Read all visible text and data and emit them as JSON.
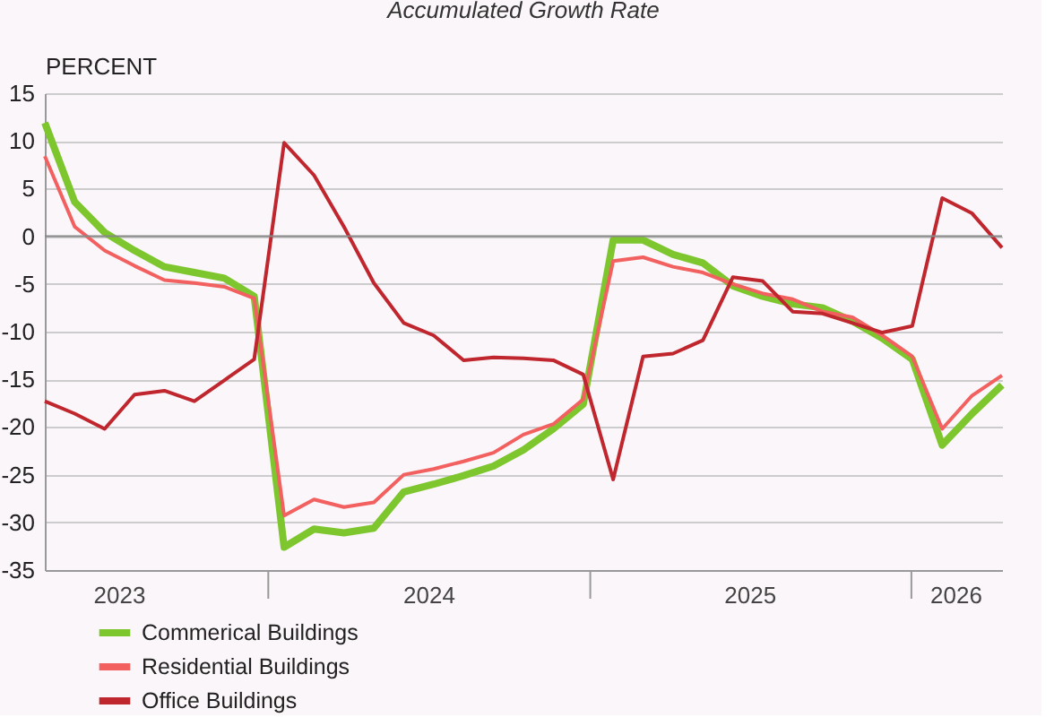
{
  "chart_data": {
    "type": "line",
    "title": "Accumulated Growth Rate",
    "ylabel": "PERCENT",
    "x": [
      "2023-04-22",
      "2023-05-26",
      "2023-06-29",
      "2023-08-02",
      "2023-09-05",
      "2023-10-09",
      "2023-11-12",
      "2023-12-16",
      "2024-01-19",
      "2024-02-22",
      "2024-03-27",
      "2024-04-30",
      "2024-06-03",
      "2024-07-07",
      "2024-08-10",
      "2024-09-13",
      "2024-10-17",
      "2024-11-20",
      "2024-12-24",
      "2025-01-27",
      "2025-03-02",
      "2025-04-05",
      "2025-05-09",
      "2025-06-12",
      "2025-07-16",
      "2025-08-19",
      "2025-09-22",
      "2025-10-26",
      "2025-11-29",
      "2026-01-02",
      "2026-02-05",
      "2026-03-11",
      "2026-04-14"
    ],
    "series": [
      {
        "name": "Commerical Buildings",
        "color": "#7dc62e",
        "values": [
          11.9,
          3.6,
          0.4,
          -1.5,
          -3.2,
          -3.8,
          -4.4,
          -6.3,
          -32.6,
          -30.7,
          -31.1,
          -30.6,
          -26.8,
          -26.0,
          -25.1,
          -24.1,
          -22.4,
          -20.2,
          -17.6,
          -0.4,
          -0.4,
          -1.9,
          -2.8,
          -5.2,
          -6.3,
          -7.1,
          -7.5,
          -8.9,
          -10.7,
          -12.9,
          -21.9,
          -18.6,
          -15.6
        ]
      },
      {
        "name": "Residential Buildings",
        "color": "#f26060",
        "values": [
          8.4,
          1.0,
          -1.5,
          -3.1,
          -4.6,
          -4.9,
          -5.3,
          -6.5,
          -29.3,
          -27.6,
          -28.4,
          -27.9,
          -25.0,
          -24.4,
          -23.6,
          -22.7,
          -20.8,
          -19.7,
          -17.1,
          -2.6,
          -2.2,
          -3.2,
          -3.8,
          -5.0,
          -6.0,
          -6.6,
          -7.9,
          -8.5,
          -10.4,
          -12.6,
          -20.2,
          -16.7,
          -14.6
        ]
      },
      {
        "name": "Office Buildings",
        "color": "#c0262d",
        "values": [
          -17.3,
          -18.6,
          -20.2,
          -16.6,
          -16.2,
          -17.3,
          -15.1,
          -12.9,
          9.8,
          6.4,
          1.0,
          -4.9,
          -9.1,
          -10.4,
          -13.0,
          -12.7,
          -12.8,
          -13.0,
          -14.5,
          -25.5,
          -12.6,
          -12.3,
          -10.9,
          -4.3,
          -4.7,
          -7.9,
          -8.1,
          -9.1,
          -10.1,
          -9.4,
          4.0,
          2.4,
          -1.2
        ]
      }
    ],
    "xlim": [
      "2023-04-22",
      "2026-04-14"
    ],
    "xticks": [
      {
        "value": "2023-07-15",
        "label": "2023"
      },
      {
        "value": "2024-01-01",
        "label": null
      },
      {
        "value": "2024-07-01",
        "label": "2024"
      },
      {
        "value": "2025-01-01",
        "label": null
      },
      {
        "value": "2025-07-01",
        "label": "2025"
      },
      {
        "value": "2026-01-01",
        "label": null
      },
      {
        "value": "2026-02-20",
        "label": "2026"
      }
    ],
    "ylim": [
      -35,
      15
    ],
    "yticks": [
      -35,
      -30,
      -25,
      -20,
      -15,
      -10,
      -5,
      0,
      5,
      10,
      15
    ],
    "ref_lines": [
      {
        "axis": "y",
        "value": 0,
        "color": "#888888"
      }
    ],
    "grid": "y",
    "legend": "bottom left",
    "marker": "none",
    "line_style": "solid"
  }
}
